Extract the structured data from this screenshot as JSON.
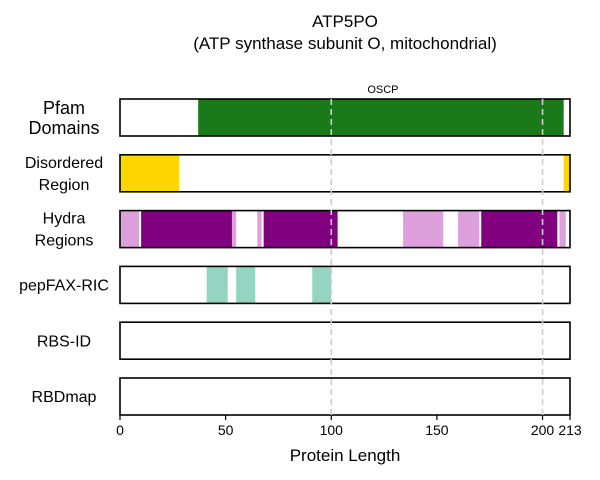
{
  "chart_data": {
    "type": "track",
    "title": "ATP5PO",
    "subtitle": "(ATP synthase subunit O, mitochondrial)",
    "xlabel": "Protein Length",
    "xlim": [
      0,
      213
    ],
    "xticks": [
      0,
      50,
      100,
      150,
      200,
      213
    ],
    "reference_lines": [
      100,
      200
    ],
    "colors": {
      "pfam": "#1a7a1a",
      "disordered": "#ffd700",
      "hydra_light": "#dda0dd",
      "hydra_dark": "#800080",
      "pepfax": "#93d5c0",
      "refline": "#cccccc"
    },
    "tracks": [
      {
        "label": "Pfam\nDomains",
        "segments": [
          {
            "start": 37,
            "end": 210,
            "color": "pfam",
            "label": "OSCP"
          }
        ]
      },
      {
        "label": "Disordered\nRegion",
        "segments": [
          {
            "start": 0,
            "end": 28,
            "color": "disordered"
          },
          {
            "start": 210,
            "end": 213,
            "color": "disordered"
          }
        ]
      },
      {
        "label": "Hydra\nRegions",
        "segments": [
          {
            "start": 0,
            "end": 9,
            "color": "hydra_light"
          },
          {
            "start": 10,
            "end": 53,
            "color": "hydra_dark"
          },
          {
            "start": 53,
            "end": 55,
            "color": "hydra_light"
          },
          {
            "start": 65,
            "end": 67,
            "color": "hydra_light"
          },
          {
            "start": 68,
            "end": 103,
            "color": "hydra_dark"
          },
          {
            "start": 134,
            "end": 153,
            "color": "hydra_light"
          },
          {
            "start": 160,
            "end": 170,
            "color": "hydra_light"
          },
          {
            "start": 171,
            "end": 207,
            "color": "hydra_dark"
          },
          {
            "start": 208,
            "end": 211,
            "color": "hydra_light"
          }
        ]
      },
      {
        "label": "pepFAX-RIC",
        "segments": [
          {
            "start": 41,
            "end": 51,
            "color": "pepfax"
          },
          {
            "start": 55,
            "end": 64,
            "color": "pepfax"
          },
          {
            "start": 91,
            "end": 100,
            "color": "pepfax"
          }
        ]
      },
      {
        "label": "RBS-ID",
        "segments": []
      },
      {
        "label": "RBDmap",
        "segments": []
      }
    ]
  }
}
